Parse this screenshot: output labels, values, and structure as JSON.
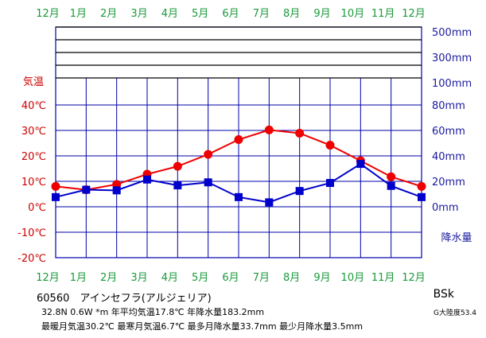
{
  "chart_data": {
    "type": "line",
    "categories": [
      "12月",
      "1月",
      "2月",
      "3月",
      "4月",
      "5月",
      "6月",
      "7月",
      "8月",
      "9月",
      "10月",
      "11月",
      "12月"
    ],
    "series": [
      {
        "name": "気温",
        "axis": "left",
        "unit": "°C",
        "color": "#ee0000",
        "marker": "circle",
        "values": [
          8.0,
          6.7,
          8.8,
          12.8,
          15.9,
          20.6,
          26.4,
          30.2,
          28.9,
          24.2,
          18.1,
          11.8,
          8.0
        ]
      },
      {
        "name": "降水量",
        "axis": "right",
        "unit": "mm",
        "color": "#0000cc",
        "marker": "square",
        "values": [
          7.6,
          13.4,
          12.9,
          21.4,
          16.8,
          19.2,
          7.6,
          3.5,
          12.4,
          18.7,
          33.7,
          16.4,
          7.6
        ]
      }
    ],
    "left_axis": {
      "title": "気温",
      "ticks": [
        40,
        30,
        20,
        10,
        0,
        -10,
        -20
      ],
      "tick_labels": [
        "40℃",
        "30℃",
        "20℃",
        "10℃",
        "0℃",
        "-10℃",
        "-20℃"
      ],
      "range": [
        -20,
        40
      ]
    },
    "right_axis": {
      "title": "降水量",
      "ticks": [
        0,
        20,
        40,
        60,
        80
      ],
      "tick_labels": [
        "0mm",
        "20mm",
        "40mm",
        "60mm",
        "80mm"
      ],
      "upper_labels": [
        "100mm",
        "300mm",
        "500mm"
      ],
      "range": [
        0,
        80
      ]
    },
    "grid": true,
    "colors": {
      "temp": "#ee0000",
      "precip": "#0000cc",
      "months": "#1a9a3a",
      "grid": "#0000aa"
    }
  },
  "station": "60560　アインセフラ(アルジェリア)",
  "info_line1": "32.8N  0.6W  *m  年平均気温17.8℃  年降水量183.2mm",
  "info_line2": "最暖月気温30.2℃  最寒月気温6.7℃  最多月降水量33.7mm  最少月降水量3.5mm",
  "climate": "BSk",
  "continent": "G大陸度53.4"
}
